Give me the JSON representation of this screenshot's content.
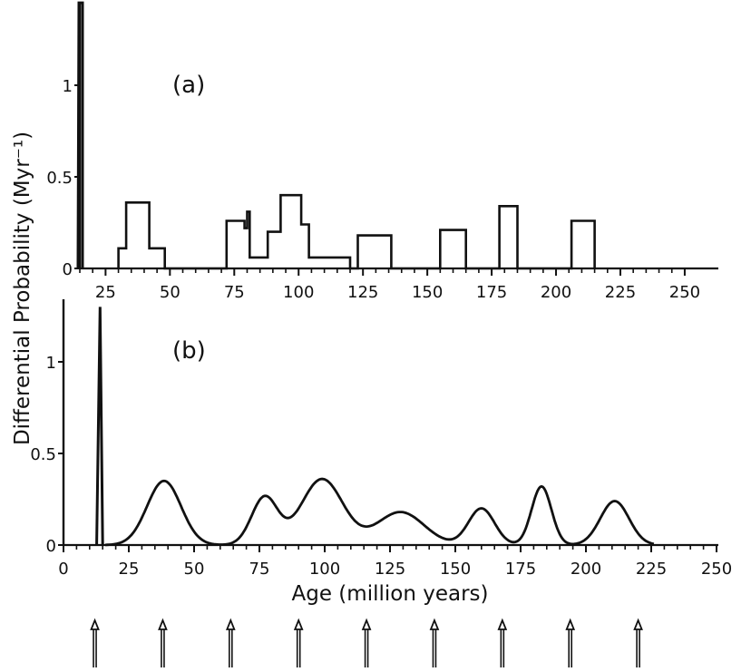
{
  "chart_data": [
    {
      "type": "step",
      "panel_label": "(a)",
      "xlim": [
        0,
        250
      ],
      "ylim": [
        0,
        1.45
      ],
      "x_ticks": [
        25,
        50,
        75,
        100,
        125,
        150,
        175,
        200,
        225,
        250
      ],
      "y_ticks": [
        0,
        0.5,
        1
      ],
      "y_tick_labels": [
        "0",
        "0.5",
        "1"
      ],
      "spike": {
        "x": 15,
        "value": 1.45
      },
      "steps": [
        [
          30,
          0.0
        ],
        [
          30,
          0.11
        ],
        [
          33,
          0.11
        ],
        [
          33,
          0.36
        ],
        [
          42,
          0.36
        ],
        [
          42,
          0.11
        ],
        [
          48,
          0.11
        ],
        [
          48,
          0.0
        ],
        [
          72,
          0.0
        ],
        [
          72,
          0.26
        ],
        [
          79,
          0.26
        ],
        [
          79,
          0.22
        ],
        [
          80,
          0.22
        ],
        [
          80,
          0.31
        ],
        [
          81,
          0.31
        ],
        [
          81,
          0.06
        ],
        [
          88,
          0.06
        ],
        [
          88,
          0.2
        ],
        [
          93,
          0.2
        ],
        [
          93,
          0.4
        ],
        [
          101,
          0.4
        ],
        [
          101,
          0.24
        ],
        [
          104,
          0.24
        ],
        [
          104,
          0.06
        ],
        [
          120,
          0.06
        ],
        [
          120,
          0.0
        ],
        [
          123,
          0.0
        ],
        [
          123,
          0.18
        ],
        [
          136,
          0.18
        ],
        [
          136,
          0.0
        ],
        [
          155,
          0.0
        ],
        [
          155,
          0.21
        ],
        [
          165,
          0.21
        ],
        [
          165,
          0.0
        ],
        [
          178,
          0.0
        ],
        [
          178,
          0.34
        ],
        [
          185,
          0.34
        ],
        [
          185,
          0.0
        ],
        [
          206,
          0.0
        ],
        [
          206,
          0.26
        ],
        [
          215,
          0.26
        ],
        [
          215,
          0.0
        ]
      ]
    },
    {
      "type": "line",
      "panel_label": "(b)",
      "xlim": [
        0,
        250
      ],
      "ylim": [
        0,
        1.35
      ],
      "x_ticks": [
        0,
        25,
        50,
        75,
        100,
        125,
        150,
        175,
        200,
        225,
        250
      ],
      "y_ticks": [
        0,
        0.5,
        1
      ],
      "y_tick_labels": [
        "0",
        "0.5",
        "1"
      ],
      "spike": {
        "x": 14,
        "value": 1.3
      },
      "peaks": [
        {
          "center": 38.5,
          "height": 0.35,
          "sigma": 6.5
        },
        {
          "center": 77,
          "height": 0.26,
          "sigma": 5
        },
        {
          "center": 99,
          "height": 0.36,
          "sigma": 8
        },
        {
          "center": 129,
          "height": 0.18,
          "sigma": 9
        },
        {
          "center": 160,
          "height": 0.2,
          "sigma": 5
        },
        {
          "center": 183,
          "height": 0.32,
          "sigma": 3.8
        },
        {
          "center": 211,
          "height": 0.24,
          "sigma": 5.5
        }
      ],
      "x_range": [
        0,
        250
      ]
    }
  ],
  "labels": {
    "panel_a": "(a)",
    "panel_b": "(b)",
    "x_axis_title": "Age (million years)",
    "y_axis_title": "Differential Probability (Myr⁻¹)"
  },
  "arrow_markers_x": [
    12,
    38,
    64,
    90,
    116,
    142,
    168,
    194,
    220
  ]
}
